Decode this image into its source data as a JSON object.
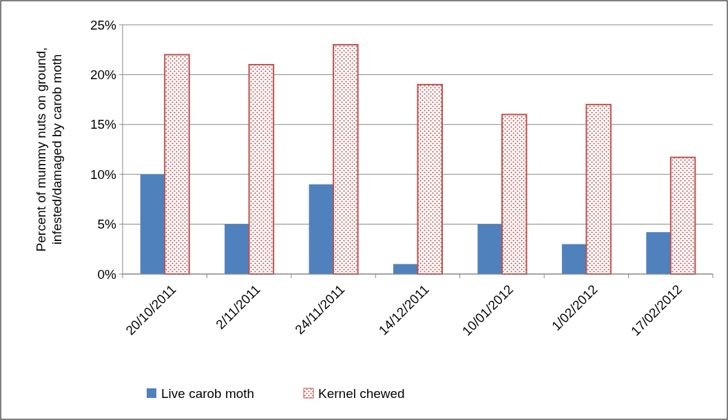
{
  "chart_data": {
    "type": "bar",
    "ylabel": "Percent of mummy nuts on ground, infested/damaged by carob moth",
    "categories": [
      "20/10/2011",
      "2/11/2011",
      "24/11/2011",
      "14/12/2011",
      "10/01/2012",
      "1/02/2012",
      "17/02/2012"
    ],
    "series": [
      {
        "name": "Live carob moth",
        "color": "#4f81bd",
        "values": [
          10,
          5,
          9,
          1,
          5,
          3,
          4.2
        ]
      },
      {
        "name": "Kernel chewed",
        "color": "#c0504d",
        "values": [
          22,
          21,
          23,
          19,
          16,
          17,
          11.7
        ]
      }
    ],
    "ylim": [
      0,
      25
    ],
    "yticks": [
      {
        "value": 0,
        "label": "0%"
      },
      {
        "value": 5,
        "label": "5%"
      },
      {
        "value": 10,
        "label": "10%"
      },
      {
        "value": 15,
        "label": "15%"
      },
      {
        "value": 20,
        "label": "20%"
      },
      {
        "value": 25,
        "label": "25%"
      }
    ],
    "grid": "y",
    "legend": "bottom"
  }
}
